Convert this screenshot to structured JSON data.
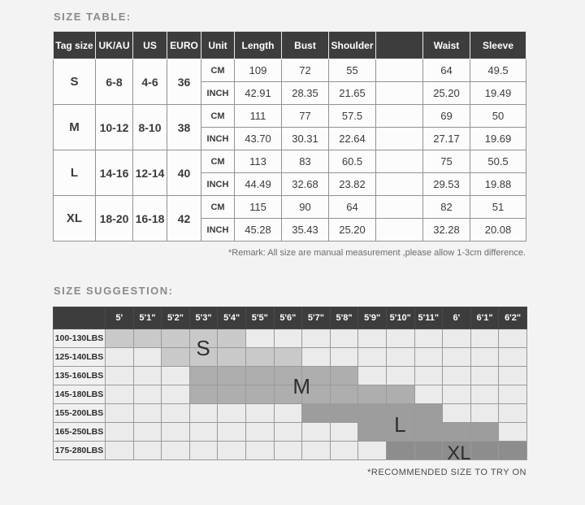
{
  "size_table": {
    "title": "SIZE TABLE:",
    "headers": [
      "Tag size",
      "UK/AU",
      "US",
      "EURO",
      "Unit",
      "Length",
      "Bust",
      "Shoulder",
      "",
      "Waist",
      "Sleeve"
    ],
    "unit_cm": "CM",
    "unit_inch": "INCH",
    "rows": [
      {
        "tag": "S",
        "uk_au": "6-8",
        "us": "4-6",
        "euro": "36",
        "cm": [
          "109",
          "72",
          "55",
          "",
          "64",
          "49.5"
        ],
        "inch": [
          "42.91",
          "28.35",
          "21.65",
          "",
          "25.20",
          "19.49"
        ]
      },
      {
        "tag": "M",
        "uk_au": "10-12",
        "us": "8-10",
        "euro": "38",
        "cm": [
          "111",
          "77",
          "57.5",
          "",
          "69",
          "50"
        ],
        "inch": [
          "43.70",
          "30.31",
          "22.64",
          "",
          "27.17",
          "19.69"
        ]
      },
      {
        "tag": "L",
        "uk_au": "14-16",
        "us": "12-14",
        "euro": "40",
        "cm": [
          "113",
          "83",
          "60.5",
          "",
          "75",
          "50.5"
        ],
        "inch": [
          "44.49",
          "32.68",
          "23.82",
          "",
          "29.53",
          "19.88"
        ]
      },
      {
        "tag": "XL",
        "uk_au": "18-20",
        "us": "16-18",
        "euro": "42",
        "cm": [
          "115",
          "90",
          "64",
          "",
          "82",
          "51"
        ],
        "inch": [
          "45.28",
          "35.43",
          "25.20",
          "",
          "32.28",
          "20.08"
        ]
      }
    ],
    "remark": "*Remark: All size are manual measurement ,please allow 1-3cm difference."
  },
  "size_suggestion": {
    "title": "SIZE SUGGESTION:",
    "heights": [
      "5'",
      "5'1\"",
      "5'2\"",
      "5'3\"",
      "5'4\"",
      "5'5\"",
      "5'6\"",
      "5'7\"",
      "5'8\"",
      "5'9\"",
      "5'10\"",
      "5'11\"",
      "6'",
      "6'1\"",
      "6'2\""
    ],
    "rows": [
      {
        "label": "100-130LBS",
        "shade": "s",
        "start": 1,
        "end": 5
      },
      {
        "label": "125-140LBS",
        "shade": "s",
        "start": 3,
        "end": 7
      },
      {
        "label": "135-160LBS",
        "shade": "m",
        "start": 4,
        "end": 9
      },
      {
        "label": "145-180LBS",
        "shade": "m",
        "start": 4,
        "end": 11
      },
      {
        "label": "155-200LBS",
        "shade": "l",
        "start": 8,
        "end": 12
      },
      {
        "label": "165-250LBS",
        "shade": "l",
        "start": 10,
        "end": 14
      },
      {
        "label": "175-280LBS",
        "shade": "xl",
        "start": 11,
        "end": 15
      }
    ],
    "shade_colors": {
      "s": "#c9c9c9",
      "m": "#aeaeae",
      "l": "#9d9d9d",
      "xl": "#8d8d8d"
    },
    "markers": [
      {
        "text": "S",
        "x_cols": 3.5,
        "y_rows": 1.0,
        "size": 26
      },
      {
        "text": "M",
        "x_cols": 7.0,
        "y_rows": 3.0,
        "size": 26
      },
      {
        "text": "L",
        "x_cols": 10.5,
        "y_rows": 5.0,
        "size": 26
      },
      {
        "text": "XL",
        "x_cols": 12.6,
        "y_rows": 6.55,
        "size": 24
      }
    ],
    "footnote": "*RECOMMENDED SIZE TO TRY ON"
  }
}
